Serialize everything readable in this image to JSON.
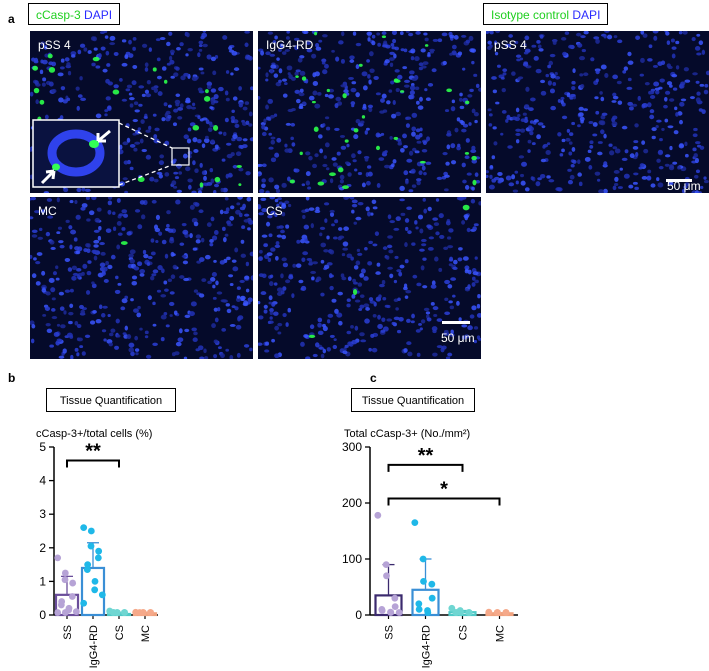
{
  "figure": {
    "panel_a_letter": "a",
    "panel_b_letter": "b",
    "panel_c_letter": "c",
    "stain_left": {
      "marker": "cCasp-3",
      "counterstain": "DAPI"
    },
    "stain_right": {
      "marker": "Isotype control",
      "counterstain": "DAPI"
    },
    "colors": {
      "marker_green": "#1fcf1f",
      "dapi_blue": "#2a2aff",
      "tissue_background": "#050a2a"
    }
  },
  "micrographs": [
    {
      "label": "pSS 4",
      "scale_bar": "",
      "has_inset": true,
      "green_density": 22
    },
    {
      "label": "IgG4-RD",
      "scale_bar": "",
      "has_inset": false,
      "green_density": 30
    },
    {
      "label": "pSS 4",
      "scale_bar": "50 μm",
      "has_inset": false,
      "green_density": 0
    },
    {
      "label": "MC",
      "scale_bar": "",
      "has_inset": false,
      "green_density": 1
    },
    {
      "label": "CS",
      "scale_bar": "50 μm",
      "has_inset": false,
      "green_density": 3
    }
  ],
  "chart_data": [
    {
      "type": "bar",
      "subtitle_box": "Tissue Quantification",
      "title": "cCasp-3+/total cells (%)",
      "categories": [
        "SS",
        "IgG4-RD",
        "CS",
        "MC"
      ],
      "values": [
        0.6,
        1.4,
        0.03,
        0.05
      ],
      "error": [
        0.55,
        0.75,
        0.05,
        0.03
      ],
      "ylim": [
        0,
        5
      ],
      "yticks": [
        0,
        1,
        2,
        3,
        4,
        5
      ],
      "bar_colors": [
        "#6b4e9b",
        "#3a8fd6",
        "#4fc9c6",
        "#f0a27e"
      ],
      "point_colors": [
        "#b6a3d6",
        "#1fb8e8",
        "#6fd6d2",
        "#f5a98a"
      ],
      "points": [
        [
          1.7,
          1.25,
          1.05,
          0.95,
          0.55,
          0.4,
          0.3,
          0.2,
          0.15,
          0.1,
          0.05,
          0.0
        ],
        [
          2.6,
          2.5,
          2.05,
          1.9,
          1.7,
          1.5,
          1.35,
          1.0,
          0.75,
          0.6,
          0.35
        ],
        [
          0.12,
          0.05,
          0.03,
          0.02,
          0.01,
          0.0,
          0.0
        ],
        [
          0.08,
          0.06,
          0.05,
          0.04,
          0.03,
          0.02
        ]
      ],
      "significance": [
        {
          "from": 0,
          "to": 2,
          "label": "**",
          "y": 4.6
        }
      ],
      "grid": false
    },
    {
      "type": "bar",
      "subtitle_box": "Tissue Quantification",
      "title": "Total cCasp-3+ (No./mm²)",
      "categories": [
        "SS",
        "IgG4-RD",
        "CS",
        "MC"
      ],
      "values": [
        35,
        45,
        5,
        3
      ],
      "error": [
        55,
        55,
        3,
        1
      ],
      "ylim": [
        0,
        300
      ],
      "yticks": [
        0,
        100,
        200,
        300
      ],
      "bar_colors": [
        "#3b2a6e",
        "#3a8fd6",
        "#4fc9c6",
        "#f0a27e"
      ],
      "point_colors": [
        "#b6a3d6",
        "#1fb8e8",
        "#6fd6d2",
        "#f5a98a"
      ],
      "points": [
        [
          178,
          90,
          70,
          30,
          15,
          10,
          8,
          5,
          3,
          2
        ],
        [
          165,
          100,
          60,
          55,
          30,
          20,
          10,
          8,
          3
        ],
        [
          12,
          8,
          5,
          3,
          2,
          1,
          0
        ],
        [
          5,
          4,
          3,
          2,
          1
        ]
      ],
      "significance": [
        {
          "from": 0,
          "to": 2,
          "label": "**",
          "y": 268
        },
        {
          "from": 0,
          "to": 3,
          "label": "*",
          "y": 208
        }
      ],
      "grid": false
    }
  ]
}
